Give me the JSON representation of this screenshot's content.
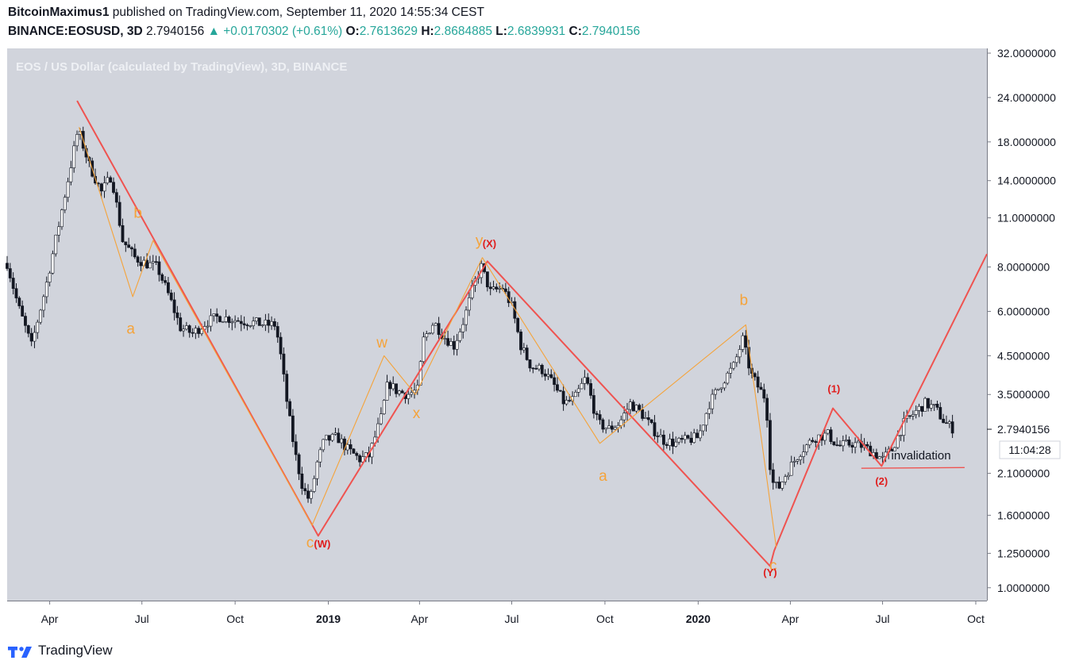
{
  "header": {
    "author": "BitcoinMaximus1",
    "published": "published on TradingView.com, September 11, 2020 14:55:34 CEST",
    "symbol": "BINANCE:EOSUSD, 3D",
    "last": "2.7940156",
    "change": "+0.0170302 (+0.61%)",
    "o_label": "O:",
    "o": "2.7613629",
    "h_label": "H:",
    "h": "2.8684885",
    "l_label": "L:",
    "l": "2.6839931",
    "c_label": "C:",
    "c": "2.7940156"
  },
  "footer": {
    "brand": "TradingView"
  },
  "chart_data": {
    "type": "line",
    "title": "EOS / US Dollar (calculated by TradingView), 3D, BINANCE",
    "currency": "USD",
    "y_scale": "log",
    "ylim": [
      0.92,
      33
    ],
    "xlim": [
      "2018-02-18",
      "2020-10-12"
    ],
    "y_ticks": [
      {
        "v": 32,
        "label": "32.0000000"
      },
      {
        "v": 24,
        "label": "24.0000000"
      },
      {
        "v": 18,
        "label": "18.0000000"
      },
      {
        "v": 14,
        "label": "14.0000000"
      },
      {
        "v": 11,
        "label": "11.0000000"
      },
      {
        "v": 8,
        "label": "8.0000000"
      },
      {
        "v": 6,
        "label": "6.0000000"
      },
      {
        "v": 4.5,
        "label": "4.5000000"
      },
      {
        "v": 3.5,
        "label": "3.5000000"
      },
      {
        "v": 2.1,
        "label": "2.1000000"
      },
      {
        "v": 1.6,
        "label": "1.6000000"
      },
      {
        "v": 1.25,
        "label": "1.2500000"
      },
      {
        "v": 1,
        "label": "1.0000000"
      }
    ],
    "x_ticks": [
      {
        "date": "2018-04-01",
        "label": "Apr",
        "bold": false
      },
      {
        "date": "2018-07-01",
        "label": "Jul",
        "bold": false
      },
      {
        "date": "2018-10-01",
        "label": "Oct",
        "bold": false
      },
      {
        "date": "2019-01-01",
        "label": "2019",
        "bold": true
      },
      {
        "date": "2019-04-01",
        "label": "Apr",
        "bold": false
      },
      {
        "date": "2019-07-01",
        "label": "Jul",
        "bold": false
      },
      {
        "date": "2019-10-01",
        "label": "Oct",
        "bold": false
      },
      {
        "date": "2020-01-01",
        "label": "2020",
        "bold": true
      },
      {
        "date": "2020-04-01",
        "label": "Apr",
        "bold": false
      },
      {
        "date": "2020-07-01",
        "label": "Jul",
        "bold": false
      },
      {
        "date": "2020-10-01",
        "label": "Oct",
        "bold": false
      }
    ],
    "price_label": {
      "value": 2.7940156,
      "label": "2.7940156",
      "countdown": "11:04:28"
    },
    "series": [
      {
        "type": "candlestick",
        "close_path": [
          [
            "2018-02-18",
            8.2
          ],
          [
            "2018-03-01",
            6.2
          ],
          [
            "2018-03-14",
            4.8
          ],
          [
            "2018-03-28",
            7.0
          ],
          [
            "2018-04-10",
            10.5
          ],
          [
            "2018-04-22",
            15.5
          ],
          [
            "2018-04-29",
            19.5
          ],
          [
            "2018-05-10",
            15.5
          ],
          [
            "2018-05-22",
            13.0
          ],
          [
            "2018-06-01",
            14.5
          ],
          [
            "2018-06-12",
            9.5
          ],
          [
            "2018-06-24",
            8.5
          ],
          [
            "2018-07-04",
            8.2
          ],
          [
            "2018-07-16",
            8.0
          ],
          [
            "2018-07-28",
            6.6
          ],
          [
            "2018-08-08",
            5.4
          ],
          [
            "2018-08-20",
            5.2
          ],
          [
            "2018-09-03",
            5.6
          ],
          [
            "2018-09-15",
            5.8
          ],
          [
            "2018-09-28",
            5.7
          ],
          [
            "2018-10-15",
            5.6
          ],
          [
            "2018-11-01",
            5.5
          ],
          [
            "2018-11-10",
            5.5
          ],
          [
            "2018-11-15",
            4.5
          ],
          [
            "2018-11-22",
            3.2
          ],
          [
            "2018-11-29",
            2.4
          ],
          [
            "2018-12-07",
            1.9
          ],
          [
            "2018-12-14",
            1.75
          ],
          [
            "2018-12-20",
            2.2
          ],
          [
            "2018-12-28",
            2.6
          ],
          [
            "2019-01-10",
            2.65
          ],
          [
            "2019-01-20",
            2.45
          ],
          [
            "2019-02-01",
            2.3
          ],
          [
            "2019-02-10",
            2.35
          ],
          [
            "2019-02-22",
            3.0
          ],
          [
            "2019-03-01",
            3.8
          ],
          [
            "2019-03-08",
            3.6
          ],
          [
            "2019-03-20",
            3.5
          ],
          [
            "2019-03-30",
            3.6
          ],
          [
            "2019-04-05",
            5.0
          ],
          [
            "2019-04-15",
            5.6
          ],
          [
            "2019-04-25",
            5.1
          ],
          [
            "2019-05-05",
            4.8
          ],
          [
            "2019-05-15",
            5.7
          ],
          [
            "2019-05-25",
            7.2
          ],
          [
            "2019-06-01",
            8.0
          ],
          [
            "2019-06-10",
            6.8
          ],
          [
            "2019-06-22",
            7.0
          ],
          [
            "2019-07-01",
            6.2
          ],
          [
            "2019-07-10",
            4.8
          ],
          [
            "2019-07-20",
            4.2
          ],
          [
            "2019-08-01",
            4.1
          ],
          [
            "2019-08-12",
            3.7
          ],
          [
            "2019-08-22",
            3.3
          ],
          [
            "2019-09-01",
            3.4
          ],
          [
            "2019-09-12",
            3.9
          ],
          [
            "2019-09-24",
            2.9
          ],
          [
            "2019-10-05",
            2.8
          ],
          [
            "2019-10-15",
            2.9
          ],
          [
            "2019-10-26",
            3.3
          ],
          [
            "2019-11-06",
            3.1
          ],
          [
            "2019-11-17",
            2.8
          ],
          [
            "2019-11-28",
            2.6
          ],
          [
            "2019-12-10",
            2.55
          ],
          [
            "2019-12-20",
            2.6
          ],
          [
            "2020-01-01",
            2.65
          ],
          [
            "2020-01-12",
            3.3
          ],
          [
            "2020-01-25",
            3.8
          ],
          [
            "2020-02-05",
            4.2
          ],
          [
            "2020-02-14",
            5.0
          ],
          [
            "2020-02-22",
            4.0
          ],
          [
            "2020-03-02",
            3.6
          ],
          [
            "2020-03-08",
            3.4
          ],
          [
            "2020-03-13",
            2.0
          ],
          [
            "2020-03-20",
            1.9
          ],
          [
            "2020-03-28",
            2.1
          ],
          [
            "2020-04-10",
            2.4
          ],
          [
            "2020-04-25",
            2.65
          ],
          [
            "2020-05-08",
            2.7
          ],
          [
            "2020-05-18",
            2.5
          ],
          [
            "2020-06-01",
            2.55
          ],
          [
            "2020-06-12",
            2.5
          ],
          [
            "2020-06-22",
            2.4
          ],
          [
            "2020-07-01",
            2.3
          ],
          [
            "2020-07-10",
            2.45
          ],
          [
            "2020-07-22",
            2.9
          ],
          [
            "2020-08-01",
            3.1
          ],
          [
            "2020-08-12",
            3.3
          ],
          [
            "2020-08-22",
            3.2
          ],
          [
            "2020-09-01",
            2.9
          ],
          [
            "2020-09-10",
            2.79
          ]
        ]
      },
      {
        "name": "primary wave count",
        "color": "#ef5350",
        "points": [
          [
            "2018-04-28",
            23.5
          ],
          [
            "2018-12-22",
            1.4
          ],
          [
            "2019-06-07",
            8.3
          ],
          [
            "2020-03-12",
            1.15
          ],
          [
            "2020-03-16",
            1.27
          ],
          [
            "2020-05-13",
            3.2
          ],
          [
            "2020-06-30",
            2.2
          ],
          [
            "2020-10-12",
            8.7
          ]
        ]
      },
      {
        "name": "sub-wave count",
        "color": "#f5a33a",
        "points": [
          [
            "2018-04-30",
            19.8
          ],
          [
            "2018-06-22",
            6.6
          ],
          [
            "2018-07-12",
            9.5
          ],
          [
            "2018-12-16",
            1.5
          ],
          [
            "2019-02-25",
            4.5
          ],
          [
            "2019-03-28",
            3.5
          ],
          [
            "2019-06-02",
            8.5
          ],
          [
            "2019-09-26",
            2.55
          ],
          [
            "2020-02-17",
            5.5
          ],
          [
            "2020-03-18",
            1.3
          ]
        ]
      },
      {
        "name": "invalidation",
        "color": "#ef5350",
        "points": [
          [
            "2020-06-10",
            2.17
          ],
          [
            "2020-09-20",
            2.18
          ]
        ]
      }
    ],
    "annotations": [
      {
        "text": "b",
        "date": "2018-06-27",
        "y": 11.0,
        "color": "#f5a33a"
      },
      {
        "text": "a",
        "date": "2018-06-20",
        "y": 5.2,
        "color": "#f5a33a"
      },
      {
        "text": "c",
        "date": "2018-12-14",
        "y": 1.3,
        "color": "#f5a33a"
      },
      {
        "text": "(W)",
        "date": "2018-12-26",
        "y": 1.3,
        "color": "#e01c1c"
      },
      {
        "text": "w",
        "date": "2019-02-23",
        "y": 4.75,
        "color": "#f5a33a"
      },
      {
        "text": "x",
        "date": "2019-03-29",
        "y": 3.0,
        "color": "#f5a33a"
      },
      {
        "text": "y",
        "date": "2019-05-30",
        "y": 9.2,
        "color": "#f5a33a"
      },
      {
        "text": "(X)",
        "date": "2019-06-09",
        "y": 9.1,
        "color": "#e01c1c"
      },
      {
        "text": "a",
        "date": "2019-09-29",
        "y": 2.0,
        "color": "#f5a33a"
      },
      {
        "text": "b",
        "date": "2020-02-15",
        "y": 6.25,
        "color": "#f5a33a"
      },
      {
        "text": "c",
        "date": "2020-03-15",
        "y": 1.12,
        "color": "#f5a33a"
      },
      {
        "text": "(Y)",
        "date": "2020-03-12",
        "y": 1.08,
        "color": "#e01c1c"
      },
      {
        "text": "(1)",
        "date": "2020-05-14",
        "y": 3.55,
        "color": "#e01c1c"
      },
      {
        "text": "(2)",
        "date": "2020-06-30",
        "y": 1.95,
        "color": "#e01c1c"
      },
      {
        "text": "invalidation",
        "date": "2020-08-08",
        "y": 2.3,
        "color": "#131722"
      }
    ]
  }
}
